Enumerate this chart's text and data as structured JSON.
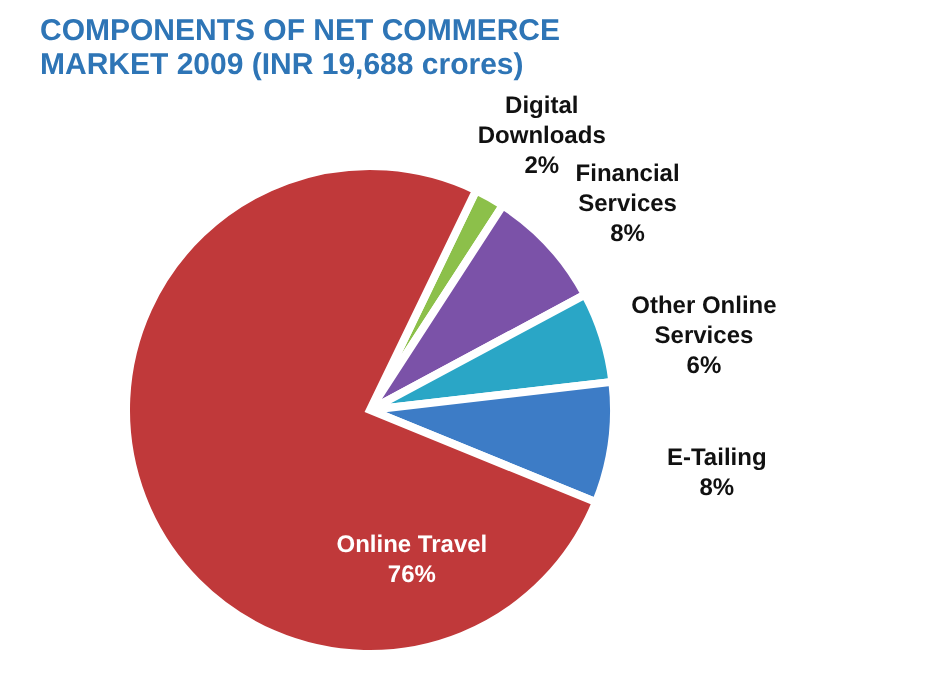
{
  "chart_data": {
    "type": "pie",
    "title": "COMPONENTS OF NET COMMERCE MARKET 2009 (INR 19,688 crores)",
    "categories": [
      "Digital Downloads",
      "Financial Services",
      "Other Online Services",
      "E-Tailing",
      "Online Travel"
    ],
    "values": [
      2,
      8,
      6,
      8,
      76
    ],
    "value_labels": [
      "2%",
      "8%",
      "6%",
      "8%",
      "76%"
    ],
    "colors": [
      "#8cc04a",
      "#7b52a8",
      "#2aa6c6",
      "#3d7cc6",
      "#c0393a"
    ],
    "legend": false
  }
}
